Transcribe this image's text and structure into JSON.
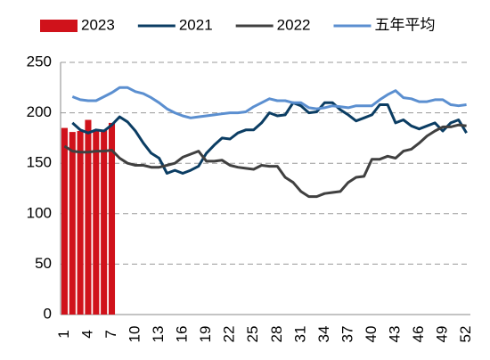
{
  "chart_data": {
    "type": "bar_line",
    "categories": [
      1,
      null,
      null,
      4,
      null,
      null,
      7,
      null,
      null,
      10,
      null,
      null,
      13,
      null,
      null,
      16,
      null,
      null,
      19,
      null,
      null,
      22,
      null,
      null,
      25,
      null,
      null,
      28,
      null,
      null,
      31,
      null,
      null,
      34,
      null,
      null,
      37,
      null,
      null,
      40,
      null,
      null,
      43,
      null,
      null,
      46,
      null,
      null,
      49,
      null,
      null,
      52
    ],
    "ylim": [
      0,
      250
    ],
    "yticks": [
      0,
      50,
      100,
      150,
      200,
      250
    ],
    "grid": true,
    "legend": "top",
    "series": [
      {
        "name": "2023",
        "type": "bar",
        "color": "#d0121b",
        "values": [
          185,
          181,
          182,
          193,
          183,
          183,
          190,
          null,
          null,
          null,
          null,
          null,
          null,
          null,
          null,
          null,
          null,
          null,
          null,
          null,
          null,
          null,
          null,
          null,
          null,
          null,
          null,
          null,
          null,
          null,
          null,
          null,
          null,
          null,
          null,
          null,
          null,
          null,
          null,
          null,
          null,
          null,
          null,
          null,
          null,
          null,
          null,
          null,
          null,
          null,
          null,
          null
        ]
      },
      {
        "name": "2021",
        "type": "line",
        "color": "#0b3d63",
        "values": [
          null,
          190,
          183,
          180,
          183,
          182,
          188,
          196,
          191,
          182,
          170,
          160,
          155,
          140,
          143,
          140,
          143,
          147,
          160,
          168,
          175,
          174,
          180,
          183,
          183,
          190,
          200,
          197,
          198,
          210,
          207,
          200,
          201,
          210,
          210,
          203,
          198,
          192,
          195,
          198,
          208,
          208,
          190,
          193,
          187,
          184,
          187,
          190,
          182,
          190,
          193,
          180
        ]
      },
      {
        "name": "2022",
        "type": "line",
        "color": "#404040",
        "values": [
          167,
          162,
          161,
          161,
          162,
          162,
          163,
          155,
          150,
          148,
          148,
          146,
          146,
          148,
          150,
          156,
          159,
          162,
          152,
          152,
          153,
          148,
          146,
          145,
          144,
          148,
          147,
          147,
          136,
          131,
          122,
          117,
          117,
          120,
          121,
          122,
          131,
          136,
          137,
          154,
          154,
          157,
          155,
          162,
          164,
          170,
          177,
          182,
          186,
          186,
          188,
          187
        ]
      },
      {
        "name": "五年平均",
        "type": "line",
        "color": "#5b8fd0",
        "values": [
          null,
          216,
          213,
          212,
          212,
          216,
          220,
          225,
          225,
          221,
          219,
          215,
          210,
          204,
          200,
          197,
          195,
          196,
          197,
          198,
          199,
          200,
          200,
          201,
          206,
          210,
          214,
          212,
          212,
          210,
          210,
          205,
          204,
          205,
          207,
          206,
          205,
          207,
          207,
          207,
          213,
          218,
          222,
          215,
          214,
          211,
          211,
          213,
          213,
          208,
          207,
          208
        ]
      }
    ]
  }
}
